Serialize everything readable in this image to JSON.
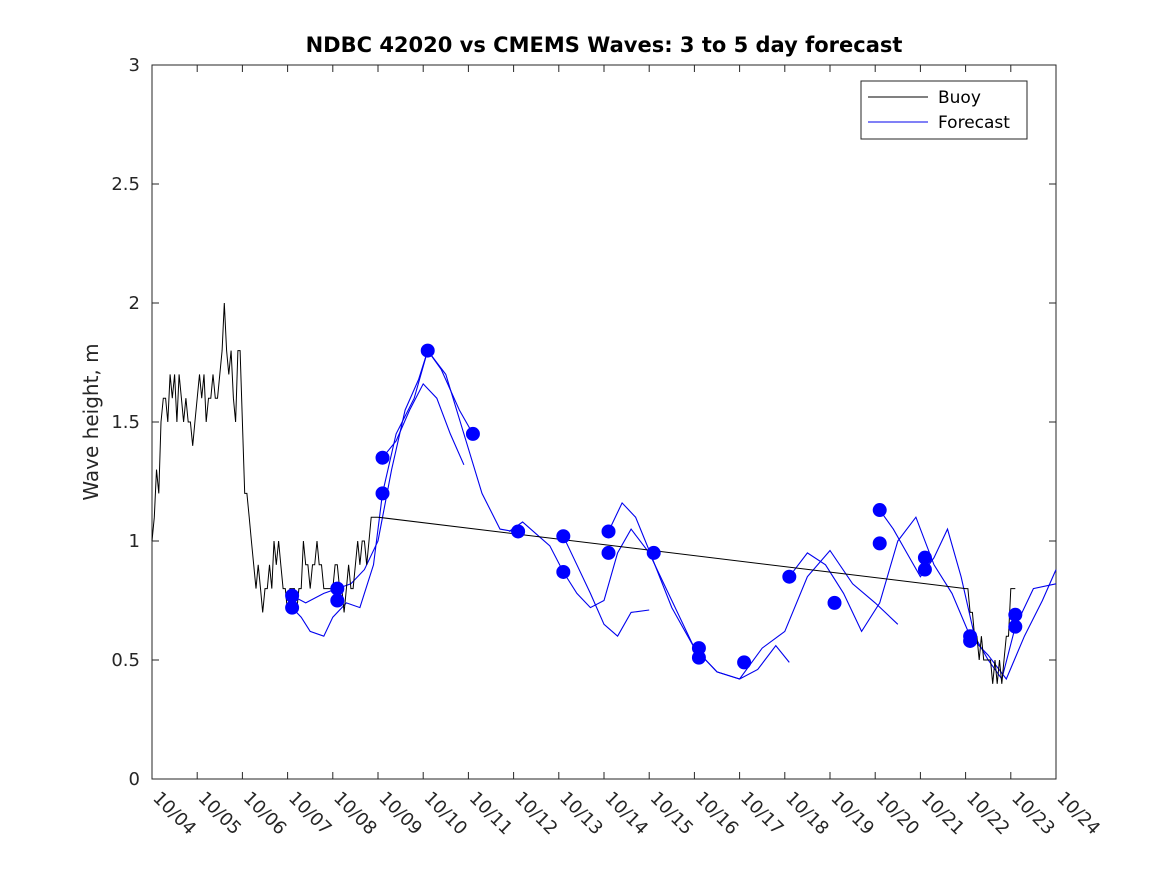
{
  "chart_data": {
    "type": "line",
    "title": "NDBC 42020 vs CMEMS Waves: 3 to 5 day forecast",
    "xlabel": "",
    "ylabel": "Wave height, m",
    "ylim": [
      0,
      3
    ],
    "xlim": [
      0,
      20
    ],
    "x_tick_labels": [
      "10/04",
      "10/05",
      "10/06",
      "10/07",
      "10/08",
      "10/09",
      "10/10",
      "10/11",
      "10/12",
      "10/13",
      "10/14",
      "10/15",
      "10/16",
      "10/17",
      "10/18",
      "10/19",
      "10/20",
      "10/21",
      "10/22",
      "10/23",
      "10/24"
    ],
    "y_ticks": [
      0,
      0.5,
      1,
      1.5,
      2,
      2.5,
      3
    ],
    "y_tick_labels": [
      "0",
      "0.5",
      "1",
      "1.5",
      "2",
      "2.5",
      "3"
    ],
    "legend": {
      "position": "top-right",
      "entries": [
        "Buoy",
        "Forecast"
      ]
    },
    "colors": {
      "buoy": "#000000",
      "forecast": "#0000ee",
      "markers": "#0000ff"
    },
    "series": [
      {
        "name": "Buoy",
        "x": [
          0.0,
          0.05,
          0.1,
          0.15,
          0.2,
          0.25,
          0.3,
          0.35,
          0.4,
          0.45,
          0.5,
          0.55,
          0.6,
          0.65,
          0.7,
          0.75,
          0.8,
          0.85,
          0.9,
          0.95,
          1.0,
          1.05,
          1.1,
          1.15,
          1.2,
          1.25,
          1.3,
          1.35,
          1.4,
          1.45,
          1.5,
          1.55,
          1.6,
          1.65,
          1.7,
          1.75,
          1.8,
          1.85,
          1.9,
          1.95,
          2.0,
          2.05,
          2.1,
          2.15,
          2.2,
          2.25,
          2.3,
          2.35,
          2.4,
          2.45,
          2.5,
          2.55,
          2.6,
          2.65,
          2.7,
          2.75,
          2.8,
          2.85,
          2.9,
          2.95,
          3.0,
          3.05,
          3.1,
          3.15,
          3.2,
          3.25,
          3.3,
          3.35,
          3.4,
          3.45,
          3.5,
          3.55,
          3.6,
          3.65,
          3.7,
          3.75,
          3.8,
          3.85,
          3.9,
          3.95,
          4.0,
          4.05,
          4.1,
          4.15,
          4.2,
          4.25,
          4.3,
          4.35,
          4.4,
          4.45,
          4.5,
          4.55,
          4.6,
          4.65,
          4.7,
          4.75,
          4.8,
          4.85,
          4.9,
          4.95,
          5.0,
          18.0,
          18.05,
          18.1,
          18.15,
          18.2,
          18.25,
          18.3,
          18.35,
          18.4,
          18.45,
          18.5,
          18.55,
          18.6,
          18.65,
          18.7,
          18.75,
          18.8,
          18.85,
          18.9,
          18.95,
          19.0,
          19.05,
          19.1
        ],
        "values": [
          1.0,
          1.1,
          1.3,
          1.2,
          1.5,
          1.6,
          1.6,
          1.5,
          1.7,
          1.6,
          1.7,
          1.5,
          1.7,
          1.6,
          1.5,
          1.6,
          1.5,
          1.5,
          1.4,
          1.5,
          1.6,
          1.7,
          1.6,
          1.7,
          1.5,
          1.6,
          1.6,
          1.7,
          1.6,
          1.6,
          1.7,
          1.8,
          2.0,
          1.8,
          1.7,
          1.8,
          1.6,
          1.5,
          1.8,
          1.8,
          1.5,
          1.2,
          1.2,
          1.1,
          1.0,
          0.9,
          0.8,
          0.9,
          0.8,
          0.7,
          0.8,
          0.8,
          0.9,
          0.8,
          1.0,
          0.9,
          1.0,
          0.9,
          0.8,
          0.8,
          0.7,
          0.8,
          0.8,
          0.8,
          0.7,
          0.8,
          0.8,
          1.0,
          0.9,
          0.9,
          0.8,
          0.9,
          0.9,
          1.0,
          0.9,
          0.9,
          0.8,
          0.8,
          0.8,
          0.8,
          0.8,
          0.9,
          0.9,
          0.8,
          0.8,
          0.7,
          0.8,
          0.9,
          0.8,
          0.8,
          0.9,
          1.0,
          0.9,
          1.0,
          1.0,
          0.9,
          1.0,
          1.1,
          1.1,
          1.1,
          1.1,
          0.8,
          0.8,
          0.7,
          0.7,
          0.6,
          0.6,
          0.5,
          0.6,
          0.5,
          0.5,
          0.5,
          0.5,
          0.4,
          0.5,
          0.4,
          0.5,
          0.4,
          0.5,
          0.6,
          0.6,
          0.8,
          0.8,
          0.8
        ]
      },
      {
        "name": "Forecast",
        "lines": [
          {
            "x": [
              3.1,
              3.3,
              3.5,
              3.8,
              4.0,
              4.3,
              4.6,
              4.9,
              5.1,
              5.4,
              5.8,
              6.1,
              6.4,
              6.8,
              7.1
            ],
            "values": [
              0.72,
              0.68,
              0.62,
              0.6,
              0.68,
              0.74,
              0.72,
              0.9,
              1.2,
              1.45,
              1.6,
              1.8,
              1.72,
              1.55,
              1.45
            ]
          },
          {
            "x": [
              3.1,
              3.4,
              3.8,
              4.1,
              4.4,
              4.7,
              5.0,
              5.3,
              5.6,
              5.9,
              6.1,
              6.5,
              6.9,
              7.3,
              7.7,
              8.0
            ],
            "values": [
              0.77,
              0.74,
              0.78,
              0.8,
              0.82,
              0.88,
              1.0,
              1.3,
              1.55,
              1.68,
              1.8,
              1.7,
              1.45,
              1.2,
              1.05,
              1.04
            ]
          },
          {
            "x": [
              5.1,
              5.4,
              5.7,
              6.0,
              6.3,
              6.6,
              6.9
            ],
            "values": [
              1.35,
              1.42,
              1.55,
              1.66,
              1.6,
              1.45,
              1.32
            ]
          },
          {
            "x": [
              7.9,
              8.2,
              8.5,
              8.8,
              9.1,
              9.4,
              9.7,
              10.0,
              10.3,
              10.6,
              11.0,
              11.5,
              12.0,
              12.5,
              13.0,
              13.4,
              13.8,
              14.1
            ],
            "values": [
              1.04,
              1.08,
              1.03,
              0.98,
              0.87,
              0.78,
              0.72,
              0.75,
              0.95,
              1.05,
              0.95,
              0.75,
              0.55,
              0.45,
              0.42,
              0.46,
              0.56,
              0.49
            ]
          },
          {
            "x": [
              9.1,
              9.4,
              9.7,
              10.0,
              10.3,
              10.6,
              11.0
            ],
            "values": [
              1.02,
              0.9,
              0.78,
              0.65,
              0.6,
              0.7,
              0.71
            ]
          },
          {
            "x": [
              10.1,
              10.4,
              10.7,
              11.0,
              11.5,
              12.0,
              12.5,
              13.0,
              13.5,
              14.0,
              14.5,
              15.0,
              15.5,
              16.0,
              16.5
            ],
            "values": [
              1.04,
              1.16,
              1.1,
              0.96,
              0.72,
              0.55,
              0.45,
              0.42,
              0.55,
              0.62,
              0.85,
              0.96,
              0.82,
              0.74,
              0.65
            ]
          },
          {
            "x": [
              14.1,
              14.5,
              14.9,
              15.3,
              15.7,
              16.1,
              16.5,
              16.9,
              17.3,
              17.7,
              18.1,
              18.5,
              18.9,
              19.3,
              19.7,
              20.0
            ],
            "values": [
              0.85,
              0.95,
              0.9,
              0.78,
              0.62,
              0.74,
              1.0,
              1.1,
              0.9,
              0.78,
              0.6,
              0.52,
              0.42,
              0.6,
              0.75,
              0.88
            ]
          },
          {
            "x": [
              16.1,
              16.4,
              16.7,
              17.0,
              17.3,
              17.6,
              17.9,
              18.2,
              18.5,
              18.8,
              19.1,
              19.5,
              20.0
            ],
            "values": [
              1.13,
              1.05,
              0.95,
              0.85,
              0.93,
              1.05,
              0.85,
              0.6,
              0.5,
              0.42,
              0.64,
              0.8,
              0.82
            ]
          }
        ]
      },
      {
        "name": "Forecast markers",
        "x": [
          3.1,
          3.1,
          4.1,
          4.1,
          5.1,
          5.1,
          6.1,
          7.1,
          8.1,
          9.1,
          9.1,
          10.1,
          10.1,
          11.1,
          12.1,
          12.1,
          13.1,
          14.1,
          15.1,
          16.1,
          16.1,
          17.1,
          17.1,
          18.1,
          18.1,
          19.1,
          19.1
        ],
        "values": [
          0.77,
          0.72,
          0.8,
          0.75,
          1.35,
          1.2,
          1.8,
          1.45,
          1.04,
          1.02,
          0.87,
          1.04,
          0.95,
          0.95,
          0.55,
          0.51,
          0.49,
          0.85,
          0.74,
          1.13,
          0.99,
          0.93,
          0.88,
          0.6,
          0.58,
          0.69,
          0.64
        ]
      }
    ]
  }
}
